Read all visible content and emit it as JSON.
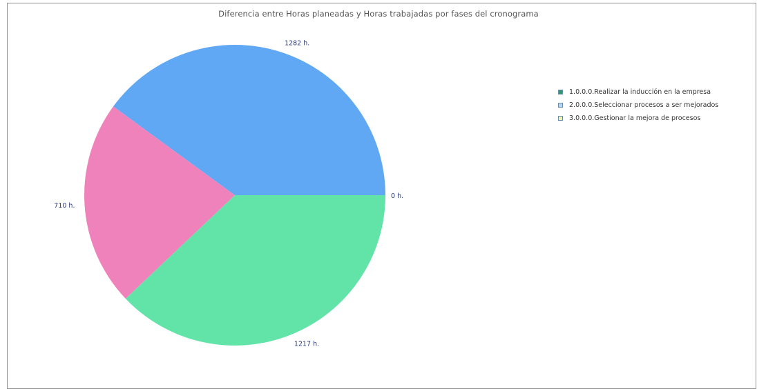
{
  "chart_data": {
    "type": "pie",
    "title": "Diferencia entre Horas planeadas y Horas trabajadas por fases del cronograma",
    "slices": [
      {
        "label": "1.0.0.0.Realizar la inducción en la empresa",
        "value": 1217,
        "value_label": "1217 h.",
        "color": "#62e3a7",
        "legend_color": "#2e9b6c"
      },
      {
        "label": "3.0.0.0.Gestionar la mejora de procesos",
        "value": 710,
        "value_label": "710 h.",
        "color": "#f082bb",
        "legend_color": "#f6f1a4"
      },
      {
        "label": "2.0.0.0.Seleccionar procesos a ser mejorados",
        "value": 1282,
        "value_label": "1282 h.",
        "color": "#61a8f4",
        "legend_color": "#b8d4f2"
      }
    ],
    "zero_label": "0 h.",
    "legend": {
      "placement": "right",
      "items": [
        {
          "text": "1.0.0.0.Realizar la inducción en la empresa",
          "color": "#2e9b6c"
        },
        {
          "text": "2.0.0.0.Seleccionar procesos a ser mejorados",
          "color": "#b8d4f2"
        },
        {
          "text": "3.0.0.0.Gestionar la mejora de procesos",
          "color": "#f6f1a4"
        }
      ]
    }
  }
}
